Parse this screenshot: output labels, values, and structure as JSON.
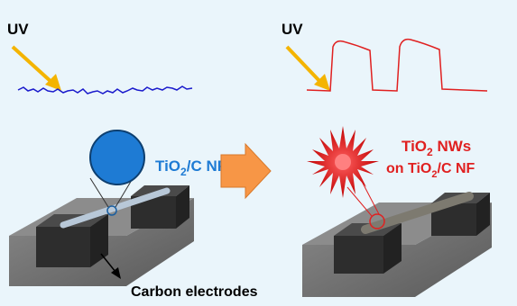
{
  "left": {
    "uv_label": "UV",
    "fiber_label": {
      "parts": [
        "TiO",
        "2",
        "/C NF"
      ]
    },
    "electrode_label": "Carbon electrodes"
  },
  "right": {
    "uv_label": "UV",
    "nw_label_line1": {
      "parts": [
        "TiO",
        "2",
        " NWs"
      ]
    },
    "nw_label_line2": {
      "parts": [
        "on TiO",
        "2",
        "/C NF"
      ]
    }
  }
}
